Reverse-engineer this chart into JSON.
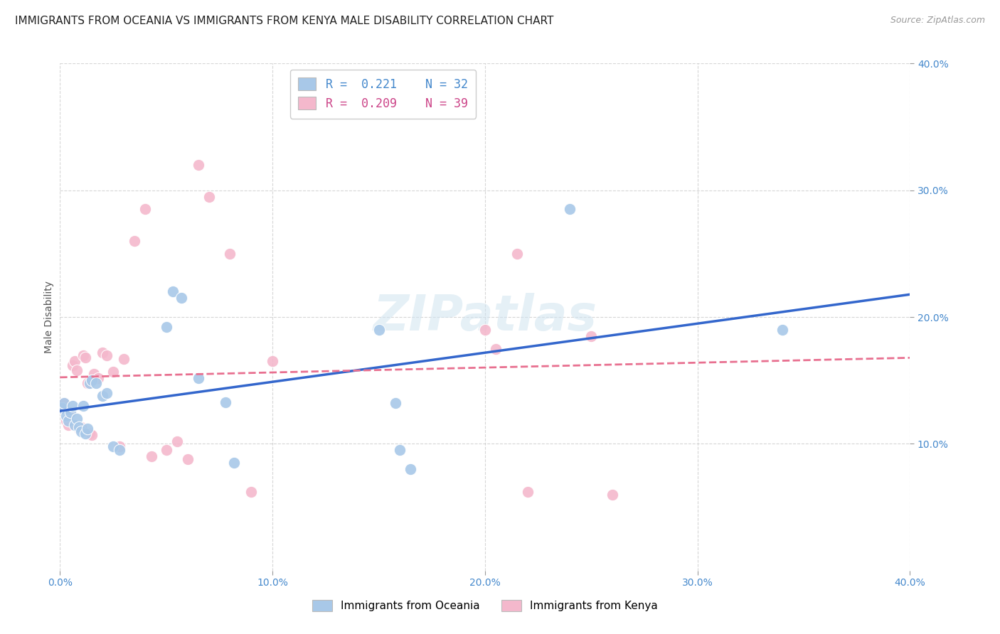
{
  "title": "IMMIGRANTS FROM OCEANIA VS IMMIGRANTS FROM KENYA MALE DISABILITY CORRELATION CHART",
  "source": "Source: ZipAtlas.com",
  "ylabel": "Male Disability",
  "xlim": [
    0.0,
    0.4
  ],
  "ylim": [
    0.0,
    0.4
  ],
  "xtick_vals": [
    0.0,
    0.1,
    0.2,
    0.3,
    0.4
  ],
  "ytick_vals": [
    0.1,
    0.2,
    0.3,
    0.4
  ],
  "oceania_color": "#a8c8e8",
  "kenya_color": "#f4b8cc",
  "regression_oceania_color": "#3366cc",
  "regression_kenya_color": "#e87090",
  "legend_R_oceania": "0.221",
  "legend_N_oceania": "32",
  "legend_R_kenya": "0.209",
  "legend_N_kenya": "39",
  "oceania_x": [
    0.001,
    0.002,
    0.003,
    0.004,
    0.005,
    0.006,
    0.007,
    0.008,
    0.009,
    0.01,
    0.011,
    0.012,
    0.013,
    0.014,
    0.015,
    0.017,
    0.02,
    0.022,
    0.025,
    0.028,
    0.05,
    0.053,
    0.057,
    0.065,
    0.078,
    0.082,
    0.15,
    0.158,
    0.16,
    0.165,
    0.24,
    0.34
  ],
  "oceania_y": [
    0.128,
    0.132,
    0.122,
    0.118,
    0.125,
    0.13,
    0.115,
    0.12,
    0.113,
    0.11,
    0.13,
    0.108,
    0.112,
    0.148,
    0.15,
    0.148,
    0.138,
    0.14,
    0.098,
    0.095,
    0.192,
    0.22,
    0.215,
    0.152,
    0.133,
    0.085,
    0.19,
    0.132,
    0.095,
    0.08,
    0.285,
    0.19
  ],
  "kenya_x": [
    0.001,
    0.002,
    0.003,
    0.004,
    0.005,
    0.006,
    0.007,
    0.008,
    0.009,
    0.01,
    0.011,
    0.012,
    0.013,
    0.014,
    0.015,
    0.016,
    0.018,
    0.02,
    0.022,
    0.025,
    0.028,
    0.03,
    0.035,
    0.04,
    0.043,
    0.05,
    0.055,
    0.06,
    0.065,
    0.07,
    0.08,
    0.09,
    0.1,
    0.2,
    0.205,
    0.215,
    0.22,
    0.25,
    0.26
  ],
  "kenya_y": [
    0.128,
    0.132,
    0.118,
    0.115,
    0.125,
    0.162,
    0.165,
    0.158,
    0.112,
    0.113,
    0.17,
    0.168,
    0.148,
    0.108,
    0.107,
    0.155,
    0.152,
    0.172,
    0.17,
    0.157,
    0.098,
    0.167,
    0.26,
    0.285,
    0.09,
    0.095,
    0.102,
    0.088,
    0.32,
    0.295,
    0.25,
    0.062,
    0.165,
    0.19,
    0.175,
    0.25,
    0.062,
    0.185,
    0.06
  ],
  "watermark": "ZIPatlas",
  "background_color": "#ffffff",
  "grid_color": "#cccccc",
  "title_fontsize": 11,
  "axis_label_fontsize": 10,
  "tick_fontsize": 10,
  "tick_color": "#4488cc"
}
